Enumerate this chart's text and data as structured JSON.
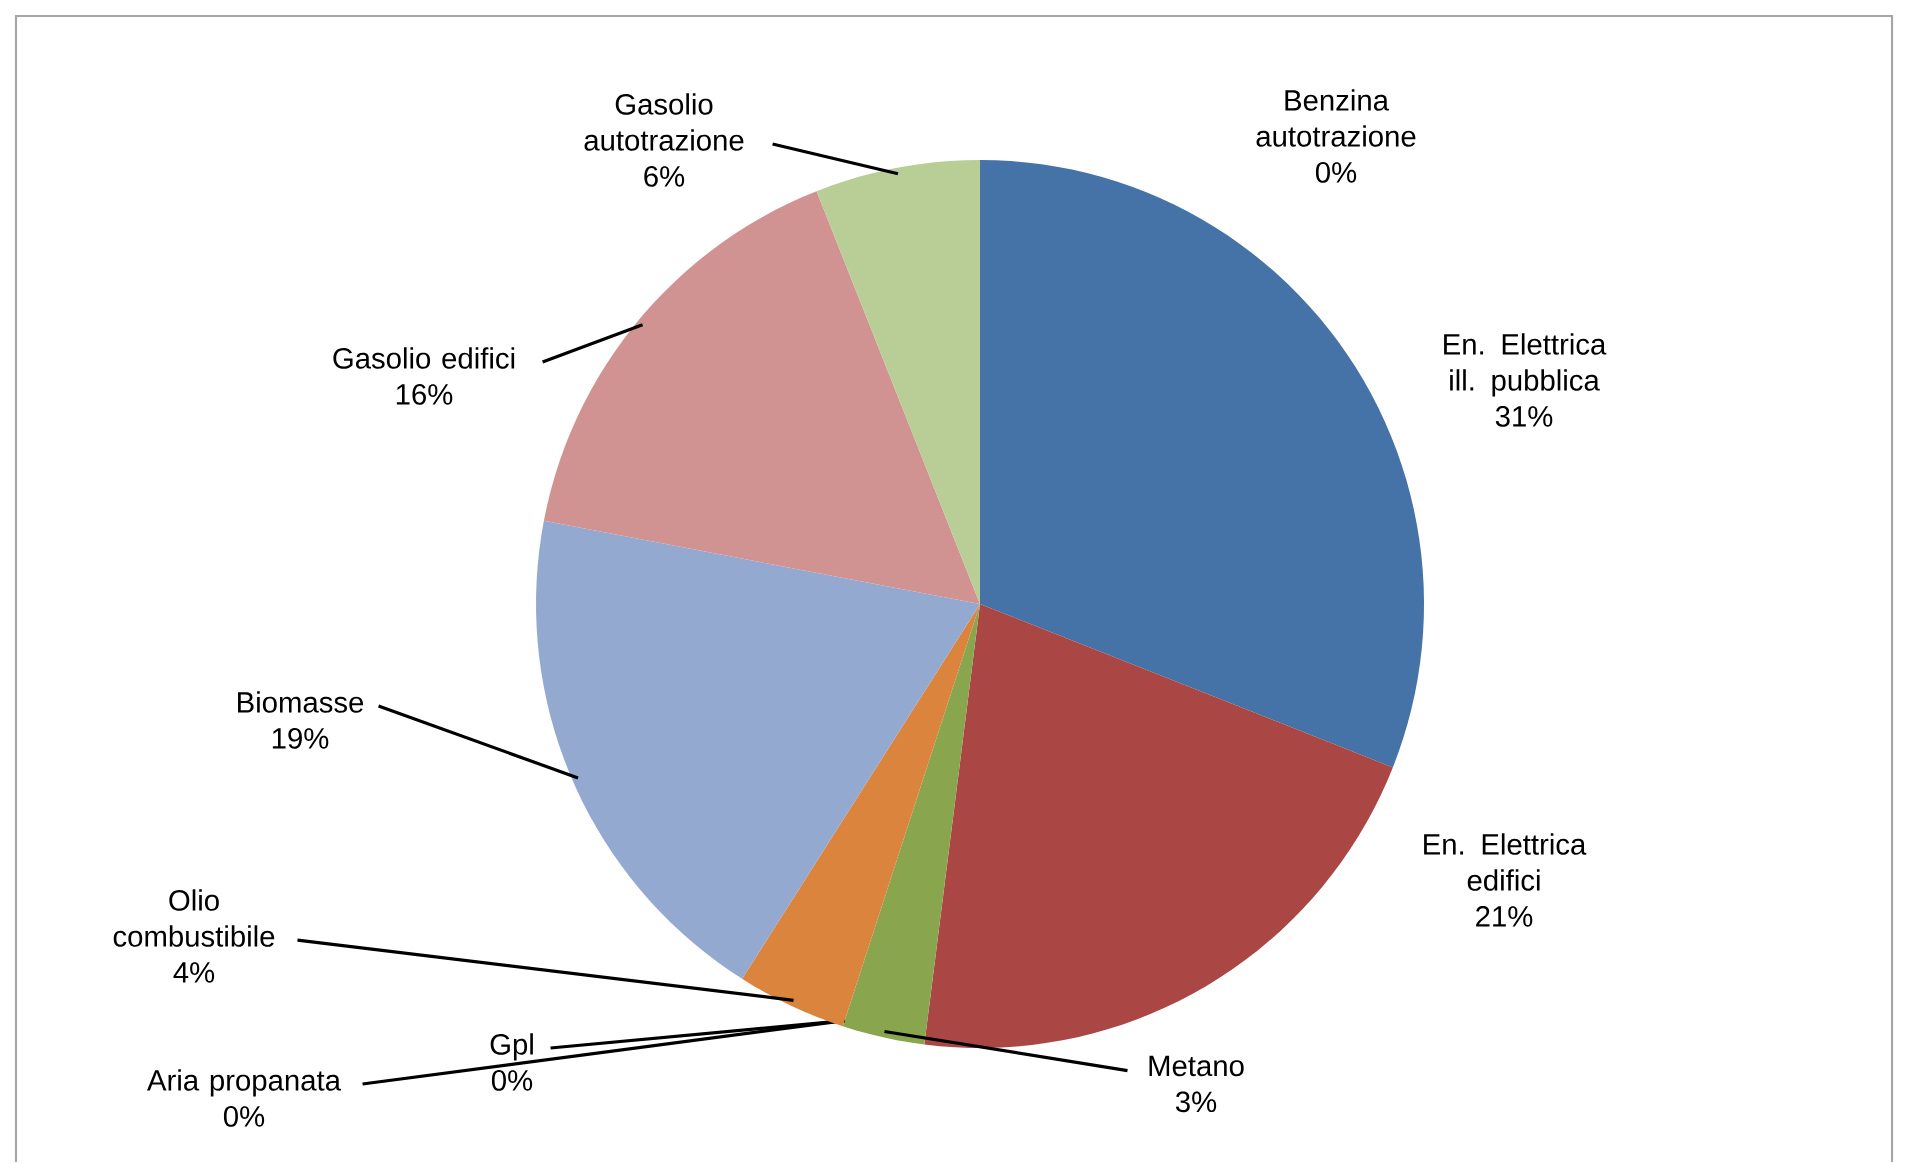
{
  "chart_data": {
    "type": "pie",
    "categories": [
      "En. Elettrica ill. pubblica",
      "En. Elettrica edifici",
      "Metano",
      "Gpl",
      "Aria propanata",
      "Olio combustibile",
      "Biomasse",
      "Gasolio edifici",
      "Gasolio autotrazione",
      "Benzina autotrazione"
    ],
    "values": [
      31,
      21,
      3,
      0,
      0,
      4,
      19,
      16,
      6,
      0
    ],
    "value_labels": [
      "31%",
      "21%",
      "3%",
      "0%",
      "0%",
      "4%",
      "19%",
      "16%",
      "6%",
      "0%"
    ],
    "colors": [
      "#4572a7",
      "#aa4643",
      "#89a54e",
      "#71588f",
      "#4198af",
      "#db843d",
      "#93a9cf",
      "#d19392",
      "#b9cd96",
      "#a99bbd"
    ]
  }
}
